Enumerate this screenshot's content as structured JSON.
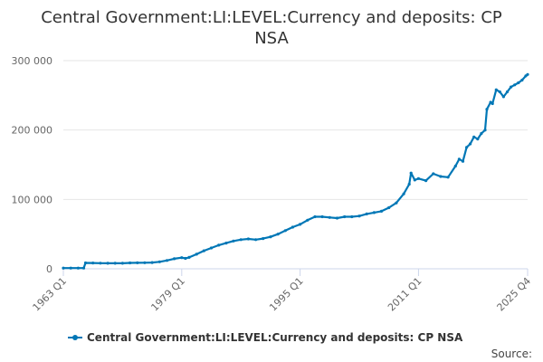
{
  "chart_data": {
    "type": "line",
    "title_line1": "Central Government:LI:LEVEL:Currency and deposits: CP",
    "title_line2": "NSA",
    "xlabel": "",
    "ylabel": "",
    "x_tick_labels": [
      "1963 Q1",
      "1979 Q1",
      "1995 Q1",
      "2011 Q1",
      "2025 Q4"
    ],
    "x_tick_positions": [
      1963.0,
      1979.0,
      1995.0,
      2011.0,
      2025.75
    ],
    "y_ticks": [
      0,
      100000,
      200000,
      300000
    ],
    "y_tick_labels": [
      "0",
      "100 000",
      "200 000",
      "300 000"
    ],
    "xlim": [
      1963.0,
      2025.75
    ],
    "ylim": [
      0,
      300000
    ],
    "grid": "horizontal",
    "legend_position": "bottom",
    "credits": "Source:",
    "series": [
      {
        "name": "Central Government:LI:LEVEL:Currency and deposits: CP NSA",
        "color": "#0077b6",
        "points": [
          [
            1963.0,
            1000
          ],
          [
            1964.0,
            1000
          ],
          [
            1965.0,
            1000
          ],
          [
            1965.75,
            1000
          ],
          [
            1966.0,
            8500
          ],
          [
            1967.0,
            8300
          ],
          [
            1968.0,
            8100
          ],
          [
            1969.0,
            8000
          ],
          [
            1970.0,
            8000
          ],
          [
            1971.0,
            8000
          ],
          [
            1972.0,
            8500
          ],
          [
            1973.0,
            8600
          ],
          [
            1974.0,
            8700
          ],
          [
            1975.0,
            9000
          ],
          [
            1976.0,
            10000
          ],
          [
            1977.0,
            12000
          ],
          [
            1978.0,
            14500
          ],
          [
            1979.0,
            16000
          ],
          [
            1979.5,
            15000
          ],
          [
            1980.0,
            16500
          ],
          [
            1981.0,
            21000
          ],
          [
            1982.0,
            26000
          ],
          [
            1983.0,
            30000
          ],
          [
            1984.0,
            34000
          ],
          [
            1985.0,
            37000
          ],
          [
            1986.0,
            40000
          ],
          [
            1987.0,
            42000
          ],
          [
            1988.0,
            43000
          ],
          [
            1989.0,
            42000
          ],
          [
            1990.0,
            43500
          ],
          [
            1991.0,
            46000
          ],
          [
            1992.0,
            50000
          ],
          [
            1993.0,
            55000
          ],
          [
            1994.0,
            60000
          ],
          [
            1995.0,
            64000
          ],
          [
            1996.0,
            70000
          ],
          [
            1997.0,
            75000
          ],
          [
            1998.0,
            75000
          ],
          [
            1999.0,
            74000
          ],
          [
            2000.0,
            73000
          ],
          [
            2001.0,
            75000
          ],
          [
            2002.0,
            75000
          ],
          [
            2003.0,
            76000
          ],
          [
            2004.0,
            79000
          ],
          [
            2005.0,
            81000
          ],
          [
            2006.0,
            83000
          ],
          [
            2007.0,
            88000
          ],
          [
            2008.0,
            95000
          ],
          [
            2009.0,
            108000
          ],
          [
            2009.75,
            122000
          ],
          [
            2010.0,
            138000
          ],
          [
            2010.5,
            128000
          ],
          [
            2011.0,
            130000
          ],
          [
            2012.0,
            127000
          ],
          [
            2013.0,
            137000
          ],
          [
            2014.0,
            133000
          ],
          [
            2015.0,
            132000
          ],
          [
            2016.0,
            148000
          ],
          [
            2016.5,
            158000
          ],
          [
            2017.0,
            155000
          ],
          [
            2017.5,
            175000
          ],
          [
            2018.0,
            180000
          ],
          [
            2018.5,
            190000
          ],
          [
            2019.0,
            187000
          ],
          [
            2019.5,
            195000
          ],
          [
            2020.0,
            200000
          ],
          [
            2020.25,
            230000
          ],
          [
            2020.75,
            240000
          ],
          [
            2021.0,
            238000
          ],
          [
            2021.5,
            258000
          ],
          [
            2022.0,
            255000
          ],
          [
            2022.5,
            248000
          ],
          [
            2023.0,
            255000
          ],
          [
            2023.5,
            262000
          ],
          [
            2024.0,
            265000
          ],
          [
            2024.5,
            268000
          ],
          [
            2025.0,
            272000
          ],
          [
            2025.5,
            278000
          ],
          [
            2025.75,
            280000
          ]
        ]
      }
    ]
  }
}
